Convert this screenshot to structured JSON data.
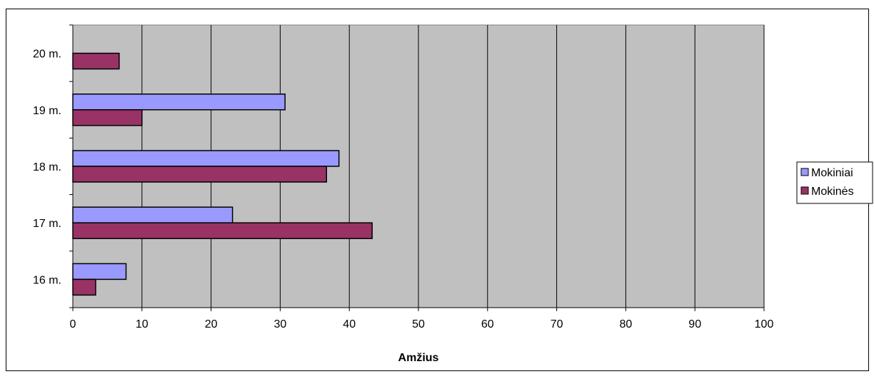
{
  "chart_data": {
    "type": "bar",
    "orientation": "horizontal",
    "categories": [
      "20 m.",
      "19 m.",
      "18 m.",
      "17 m.",
      "16 m."
    ],
    "series": [
      {
        "name": "Mokiniai",
        "color": "#9999ff",
        "values": [
          0,
          30.7,
          38.5,
          23.1,
          7.7
        ]
      },
      {
        "name": "Mokinės",
        "color": "#993366",
        "values": [
          6.7,
          10.0,
          36.7,
          43.3,
          3.3
        ]
      }
    ],
    "x_ticks": [
      "0",
      "10",
      "20",
      "30",
      "40",
      "50",
      "60",
      "70",
      "80",
      "90",
      "100"
    ],
    "xlim": [
      0,
      100
    ],
    "xlabel": "Amžius",
    "ylabel": "",
    "plot_background": "#c0c0c0",
    "grid": "vertical",
    "legend_position": "right"
  }
}
